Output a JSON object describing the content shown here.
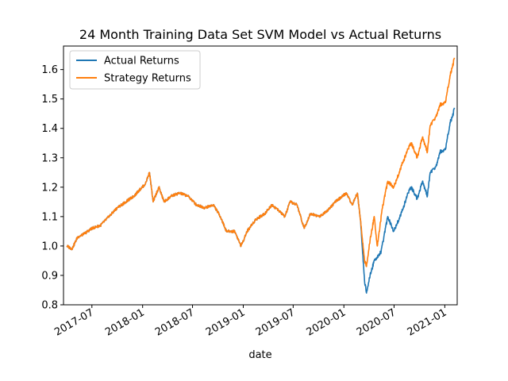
{
  "chart_data": {
    "type": "line",
    "title": "24 Month Training Data Set SVM Model vs Actual Returns",
    "xlabel": "date",
    "ylabel": "",
    "xlim": [
      "2017-03-20",
      "2021-02-15"
    ],
    "ylim": [
      0.8,
      1.68
    ],
    "x_ticks": [
      "2017-07",
      "2018-01",
      "2018-07",
      "2019-01",
      "2019-07",
      "2020-01",
      "2020-07",
      "2021-01"
    ],
    "y_ticks": [
      "0.8",
      "0.9",
      "1.0",
      "1.1",
      "1.2",
      "1.3",
      "1.4",
      "1.5",
      "1.6"
    ],
    "legend_position": "top-left",
    "series": [
      {
        "name": "Actual Returns",
        "color": "#1f77b4",
        "points": [
          [
            "2017-04-01",
            1.0
          ],
          [
            "2017-04-20",
            0.99
          ],
          [
            "2017-05-10",
            1.03
          ],
          [
            "2017-06-01",
            1.04
          ],
          [
            "2017-07-01",
            1.06
          ],
          [
            "2017-08-01",
            1.07
          ],
          [
            "2017-09-01",
            1.1
          ],
          [
            "2017-10-01",
            1.13
          ],
          [
            "2017-11-01",
            1.15
          ],
          [
            "2017-12-01",
            1.17
          ],
          [
            "2017-12-20",
            1.19
          ],
          [
            "2018-01-10",
            1.21
          ],
          [
            "2018-01-26",
            1.25
          ],
          [
            "2018-02-08",
            1.15
          ],
          [
            "2018-03-01",
            1.2
          ],
          [
            "2018-03-20",
            1.15
          ],
          [
            "2018-04-15",
            1.17
          ],
          [
            "2018-05-15",
            1.18
          ],
          [
            "2018-06-15",
            1.17
          ],
          [
            "2018-07-15",
            1.14
          ],
          [
            "2018-08-15",
            1.13
          ],
          [
            "2018-09-15",
            1.14
          ],
          [
            "2018-10-10",
            1.1
          ],
          [
            "2018-11-01",
            1.05
          ],
          [
            "2018-12-01",
            1.05
          ],
          [
            "2018-12-24",
            1.0
          ],
          [
            "2019-01-15",
            1.05
          ],
          [
            "2019-02-15",
            1.09
          ],
          [
            "2019-03-20",
            1.11
          ],
          [
            "2019-04-15",
            1.14
          ],
          [
            "2019-05-10",
            1.12
          ],
          [
            "2019-06-01",
            1.1
          ],
          [
            "2019-06-20",
            1.15
          ],
          [
            "2019-07-15",
            1.14
          ],
          [
            "2019-08-10",
            1.06
          ],
          [
            "2019-09-01",
            1.11
          ],
          [
            "2019-10-05",
            1.1
          ],
          [
            "2019-11-01",
            1.12
          ],
          [
            "2019-12-01",
            1.15
          ],
          [
            "2020-01-10",
            1.18
          ],
          [
            "2020-01-31",
            1.14
          ],
          [
            "2020-02-19",
            1.18
          ],
          [
            "2020-03-01",
            1.09
          ],
          [
            "2020-03-16",
            0.88
          ],
          [
            "2020-03-23",
            0.84
          ],
          [
            "2020-04-05",
            0.9
          ],
          [
            "2020-04-20",
            0.95
          ],
          [
            "2020-05-15",
            0.98
          ],
          [
            "2020-06-08",
            1.1
          ],
          [
            "2020-06-30",
            1.05
          ],
          [
            "2020-07-31",
            1.12
          ],
          [
            "2020-08-20",
            1.18
          ],
          [
            "2020-09-02",
            1.2
          ],
          [
            "2020-09-23",
            1.16
          ],
          [
            "2020-10-12",
            1.22
          ],
          [
            "2020-10-30",
            1.17
          ],
          [
            "2020-11-09",
            1.25
          ],
          [
            "2020-11-30",
            1.27
          ],
          [
            "2020-12-15",
            1.32
          ],
          [
            "2021-01-04",
            1.33
          ],
          [
            "2021-01-20",
            1.42
          ],
          [
            "2021-01-29",
            1.44
          ],
          [
            "2021-02-05",
            1.47
          ]
        ]
      },
      {
        "name": "Strategy Returns",
        "color": "#ff7f0e",
        "points": [
          [
            "2017-04-01",
            1.0
          ],
          [
            "2017-04-20",
            0.99
          ],
          [
            "2017-05-10",
            1.03
          ],
          [
            "2017-06-01",
            1.04
          ],
          [
            "2017-07-01",
            1.06
          ],
          [
            "2017-08-01",
            1.07
          ],
          [
            "2017-09-01",
            1.1
          ],
          [
            "2017-10-01",
            1.13
          ],
          [
            "2017-11-01",
            1.15
          ],
          [
            "2017-12-01",
            1.17
          ],
          [
            "2017-12-20",
            1.19
          ],
          [
            "2018-01-10",
            1.21
          ],
          [
            "2018-01-26",
            1.25
          ],
          [
            "2018-02-08",
            1.15
          ],
          [
            "2018-03-01",
            1.2
          ],
          [
            "2018-03-20",
            1.15
          ],
          [
            "2018-04-15",
            1.17
          ],
          [
            "2018-05-15",
            1.18
          ],
          [
            "2018-06-15",
            1.17
          ],
          [
            "2018-07-15",
            1.14
          ],
          [
            "2018-08-15",
            1.13
          ],
          [
            "2018-09-15",
            1.14
          ],
          [
            "2018-10-10",
            1.1
          ],
          [
            "2018-11-01",
            1.05
          ],
          [
            "2018-12-01",
            1.05
          ],
          [
            "2018-12-24",
            1.0
          ],
          [
            "2019-01-15",
            1.05
          ],
          [
            "2019-02-15",
            1.09
          ],
          [
            "2019-03-20",
            1.11
          ],
          [
            "2019-04-15",
            1.14
          ],
          [
            "2019-05-10",
            1.12
          ],
          [
            "2019-06-01",
            1.1
          ],
          [
            "2019-06-20",
            1.15
          ],
          [
            "2019-07-15",
            1.14
          ],
          [
            "2019-08-10",
            1.06
          ],
          [
            "2019-09-01",
            1.11
          ],
          [
            "2019-10-05",
            1.1
          ],
          [
            "2019-11-01",
            1.12
          ],
          [
            "2019-12-01",
            1.15
          ],
          [
            "2020-01-10",
            1.18
          ],
          [
            "2020-01-31",
            1.14
          ],
          [
            "2020-02-19",
            1.18
          ],
          [
            "2020-03-01",
            1.09
          ],
          [
            "2020-03-16",
            0.95
          ],
          [
            "2020-03-23",
            0.93
          ],
          [
            "2020-04-05",
            1.02
          ],
          [
            "2020-04-20",
            1.1
          ],
          [
            "2020-05-01",
            1.0
          ],
          [
            "2020-05-20",
            1.13
          ],
          [
            "2020-06-08",
            1.22
          ],
          [
            "2020-06-30",
            1.2
          ],
          [
            "2020-07-31",
            1.28
          ],
          [
            "2020-08-20",
            1.33
          ],
          [
            "2020-09-02",
            1.35
          ],
          [
            "2020-09-23",
            1.3
          ],
          [
            "2020-10-12",
            1.37
          ],
          [
            "2020-10-30",
            1.32
          ],
          [
            "2020-11-09",
            1.41
          ],
          [
            "2020-11-30",
            1.44
          ],
          [
            "2020-12-15",
            1.48
          ],
          [
            "2021-01-04",
            1.49
          ],
          [
            "2021-01-20",
            1.58
          ],
          [
            "2021-01-29",
            1.61
          ],
          [
            "2021-02-05",
            1.64
          ]
        ]
      }
    ]
  }
}
